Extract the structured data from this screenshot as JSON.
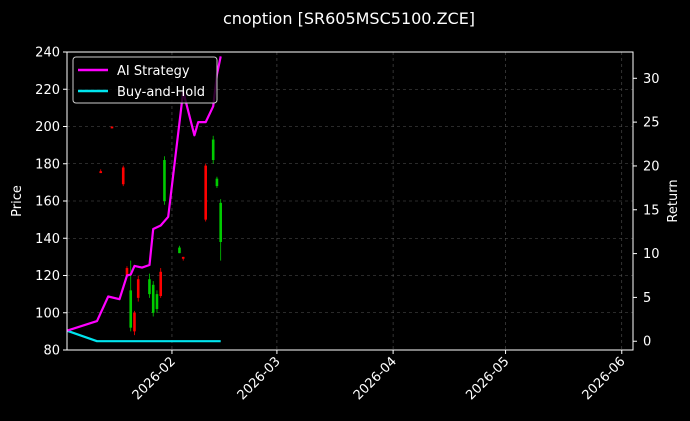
{
  "chart_data": {
    "type": "line",
    "title": "cnoption [SR605MSC5100.ZCE]",
    "ylabel_left": "Price",
    "ylabel_right": "Return",
    "left_axis": {
      "ylim": [
        80,
        240
      ],
      "ticks": [
        "80",
        "100",
        "120",
        "140",
        "160",
        "180",
        "200",
        "220",
        "240"
      ]
    },
    "right_axis": {
      "ylim": [
        -1,
        33
      ],
      "ticks": [
        "0",
        "5",
        "10",
        "15",
        "20",
        "25",
        "30"
      ]
    },
    "x_axis": {
      "range": [
        "2026-01-04",
        "2026-06-04"
      ],
      "ticks": [
        {
          "date": "2026-02-01",
          "label": "2026-02"
        },
        {
          "date": "2026-03-01",
          "label": "2026-03"
        },
        {
          "date": "2026-04-01",
          "label": "2026-04"
        },
        {
          "date": "2026-05-01",
          "label": "2026-05"
        },
        {
          "date": "2026-06-01",
          "label": "2026-06"
        }
      ]
    },
    "grid": true,
    "legend": {
      "placement": "upper-left",
      "entries": [
        {
          "name": "AI Strategy",
          "color": "#ff00ff"
        },
        {
          "name": "Buy-and-Hold",
          "color": "#00e5ee"
        }
      ]
    },
    "candles": [
      {
        "date": "2026-01-13",
        "open": 176,
        "close": 175,
        "high": 177,
        "low": 175,
        "color": "#ff0000"
      },
      {
        "date": "2026-01-16",
        "open": 200,
        "close": 199,
        "high": 200,
        "low": 199,
        "color": "#ff0000"
      },
      {
        "date": "2026-01-19",
        "open": 178,
        "close": 169,
        "high": 179,
        "low": 168,
        "color": "#ff0000"
      },
      {
        "date": "2026-01-20",
        "open": 124,
        "close": 120,
        "high": 125,
        "low": 119,
        "color": "#ff0000"
      },
      {
        "date": "2026-01-21",
        "open": 92,
        "close": 112,
        "high": 128,
        "low": 90,
        "color": "#00cc00"
      },
      {
        "date": "2026-01-22",
        "open": 100,
        "close": 90,
        "high": 101,
        "low": 88,
        "color": "#ff0000"
      },
      {
        "date": "2026-01-23",
        "open": 118,
        "close": 108,
        "high": 120,
        "low": 106,
        "color": "#ff0000"
      },
      {
        "date": "2026-01-26",
        "open": 110,
        "close": 118,
        "high": 121,
        "low": 108,
        "color": "#00cc00"
      },
      {
        "date": "2026-01-27",
        "open": 100,
        "close": 115,
        "high": 117,
        "low": 98,
        "color": "#00cc00"
      },
      {
        "date": "2026-01-28",
        "open": 102,
        "close": 110,
        "high": 112,
        "low": 100,
        "color": "#00cc00"
      },
      {
        "date": "2026-01-29",
        "open": 122,
        "close": 109,
        "high": 124,
        "low": 108,
        "color": "#ff0000"
      },
      {
        "date": "2026-01-30",
        "open": 160,
        "close": 182,
        "high": 184,
        "low": 158,
        "color": "#00cc00"
      },
      {
        "date": "2026-02-03",
        "open": 132,
        "close": 135,
        "high": 136,
        "low": 132,
        "color": "#00cc00"
      },
      {
        "date": "2026-02-04",
        "open": 130,
        "close": 129,
        "high": 130,
        "low": 128,
        "color": "#ff0000"
      },
      {
        "date": "2026-02-10",
        "open": 179,
        "close": 150,
        "high": 180,
        "low": 149,
        "color": "#ff0000"
      },
      {
        "date": "2026-02-12",
        "open": 182,
        "close": 193,
        "high": 195,
        "low": 180,
        "color": "#00cc00"
      },
      {
        "date": "2026-02-13",
        "open": 168,
        "close": 172,
        "high": 173,
        "low": 167,
        "color": "#00cc00"
      },
      {
        "date": "2026-02-14",
        "open": 138,
        "close": 159,
        "high": 161,
        "low": 128,
        "color": "#00cc00"
      }
    ],
    "series": [
      {
        "name": "AI Strategy",
        "color": "#ff00ff",
        "axis": "right",
        "points": [
          [
            "2026-01-04",
            1.2
          ],
          [
            "2026-01-12",
            2.3
          ],
          [
            "2026-01-15",
            5.1
          ],
          [
            "2026-01-18",
            4.8
          ],
          [
            "2026-01-20",
            7.5
          ],
          [
            "2026-01-21",
            7.6
          ],
          [
            "2026-01-22",
            8.6
          ],
          [
            "2026-01-24",
            8.4
          ],
          [
            "2026-01-26",
            8.7
          ],
          [
            "2026-01-27",
            12.8
          ],
          [
            "2026-01-29",
            13.2
          ],
          [
            "2026-01-31",
            14.2
          ],
          [
            "2026-02-04",
            28.5
          ],
          [
            "2026-02-07",
            23.5
          ],
          [
            "2026-02-08",
            25.0
          ],
          [
            "2026-02-10",
            25.0
          ],
          [
            "2026-02-12",
            26.8
          ],
          [
            "2026-02-13",
            30.4
          ],
          [
            "2026-02-14",
            32.5
          ]
        ]
      },
      {
        "name": "Buy-and-Hold",
        "color": "#00e5ee",
        "axis": "right",
        "points": [
          [
            "2026-01-04",
            1.2
          ],
          [
            "2026-01-12",
            0.0
          ],
          [
            "2026-02-14",
            0.0
          ]
        ]
      }
    ]
  }
}
